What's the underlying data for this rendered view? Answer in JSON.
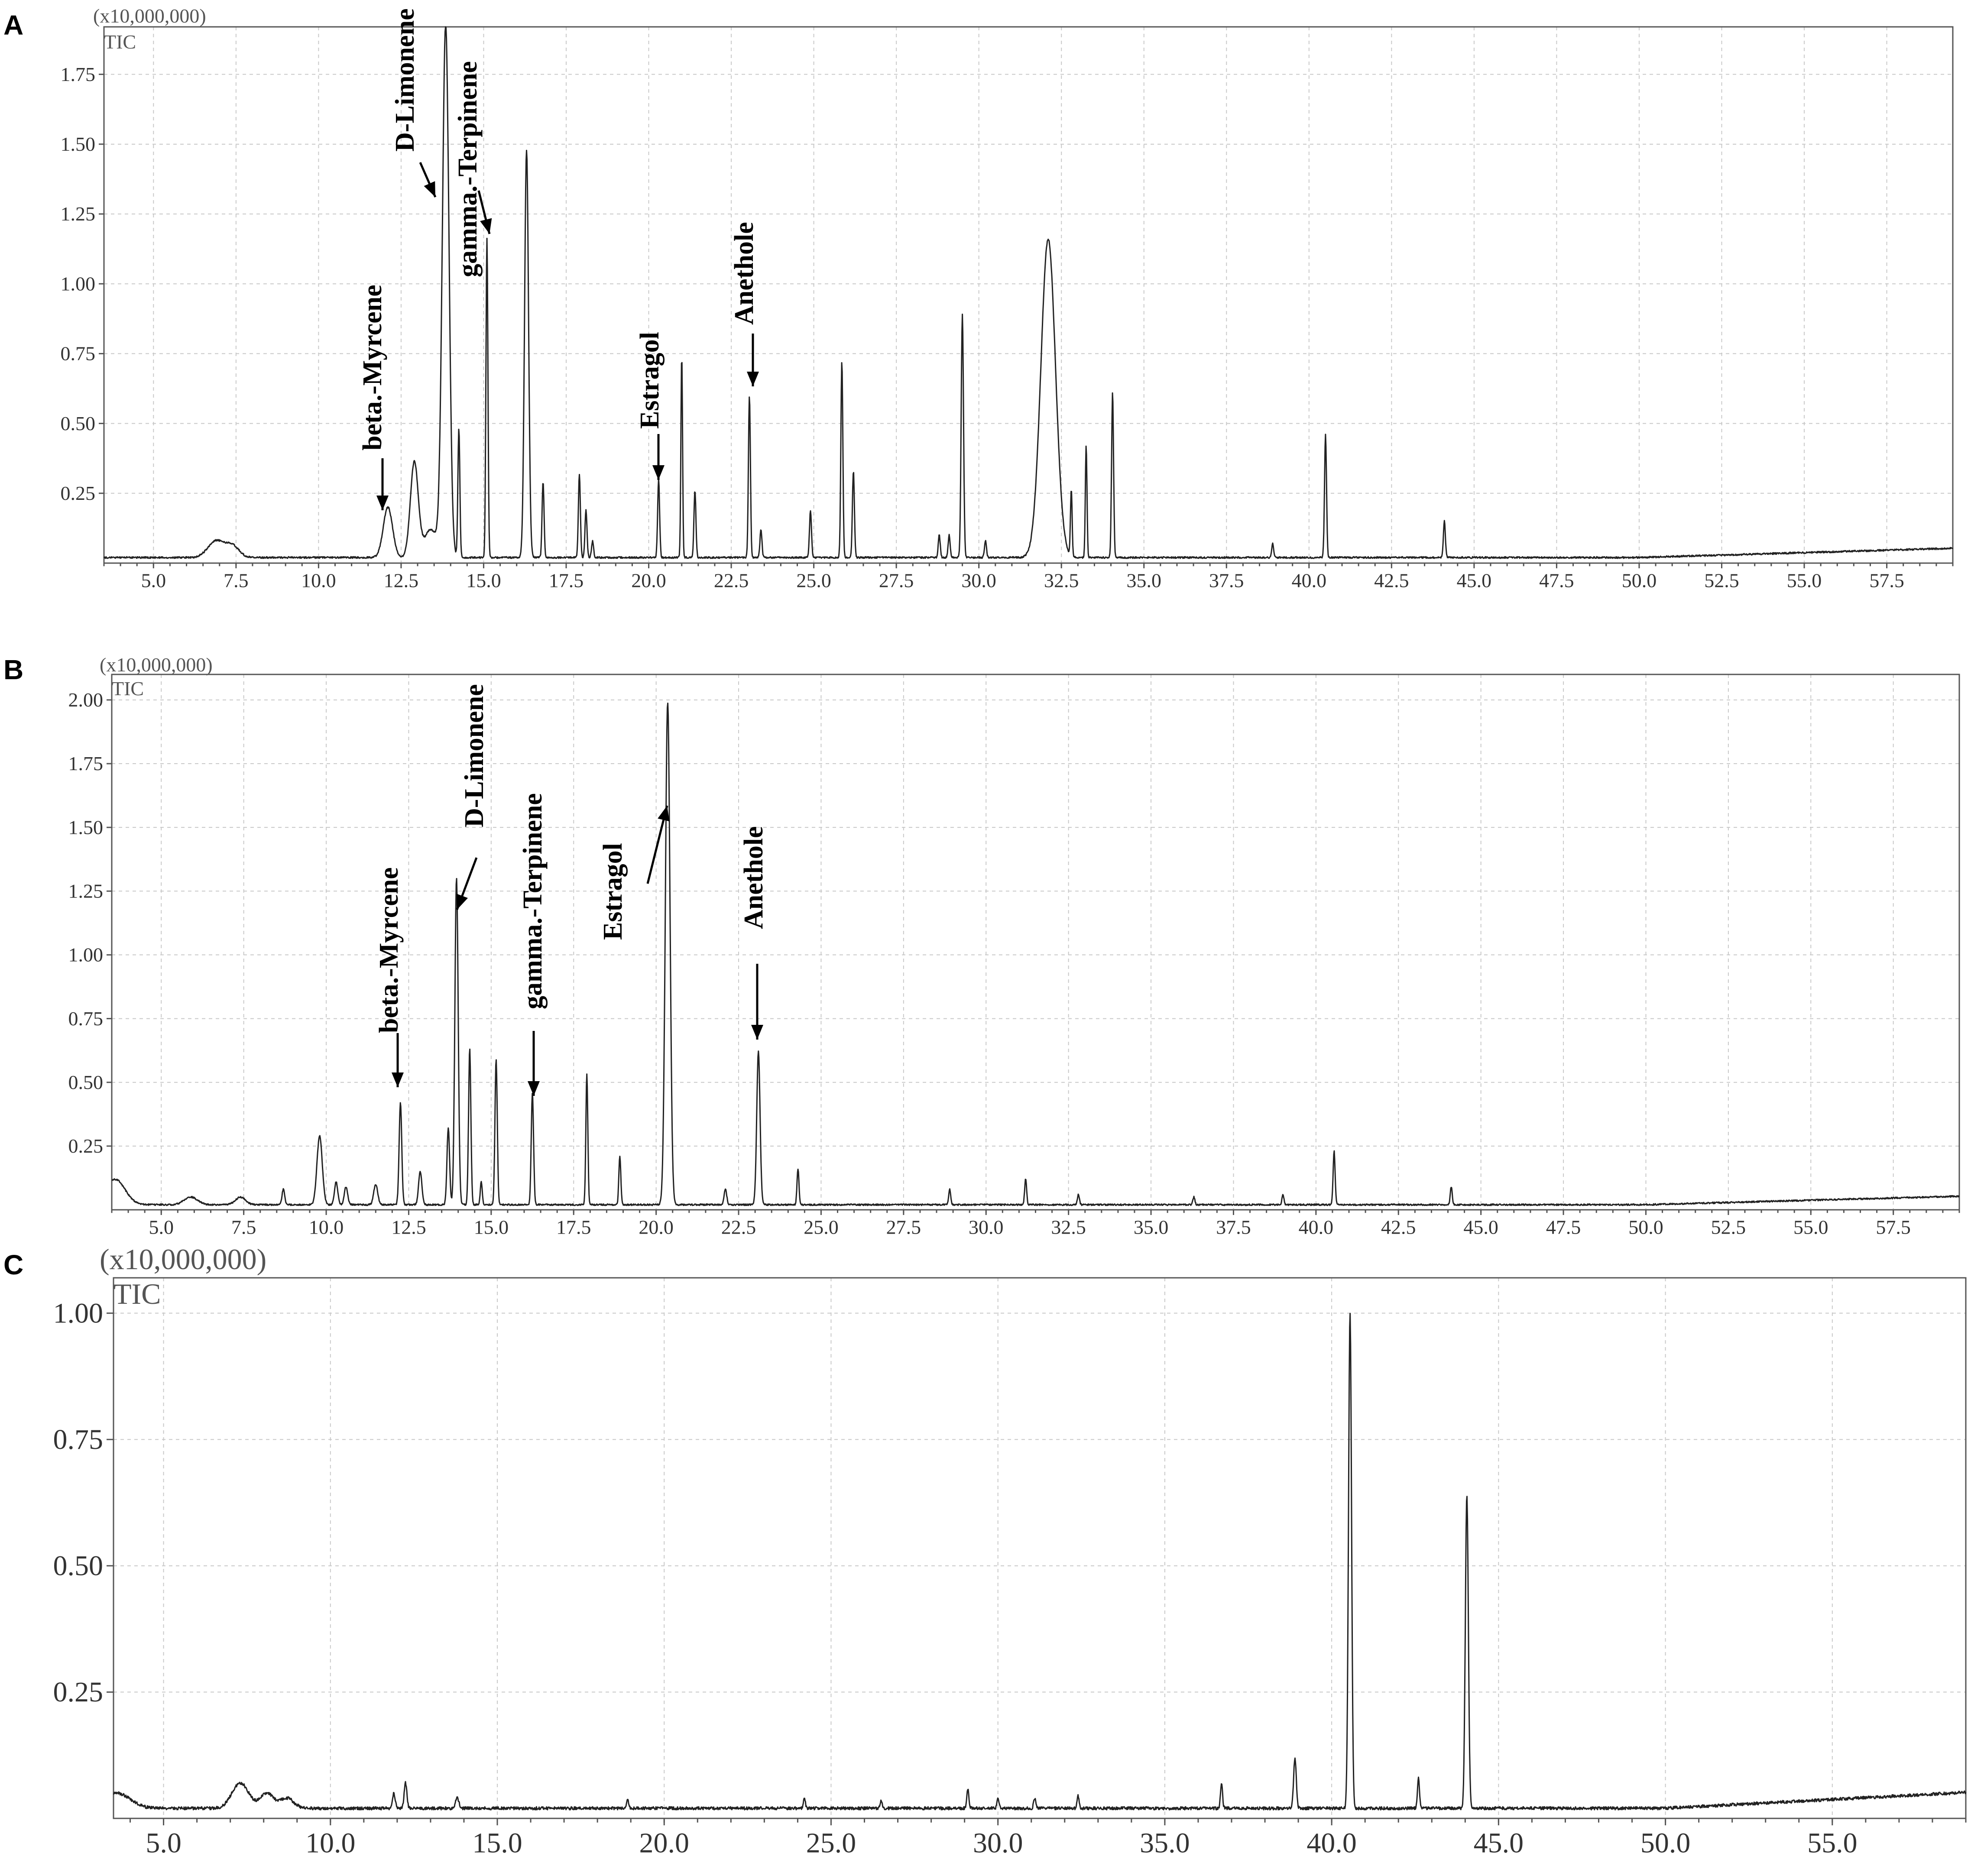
{
  "chart_data": [
    {
      "panel": "A",
      "type": "line",
      "scale_label": "(x10,000,000)",
      "trace_label": "TIC",
      "xlim": [
        3.5,
        59.5
      ],
      "ylim": [
        0,
        1.92
      ],
      "x_ticks": [
        5.0,
        7.5,
        10.0,
        12.5,
        15.0,
        17.5,
        20.0,
        22.5,
        25.0,
        27.5,
        30.0,
        32.5,
        35.0,
        37.5,
        40.0,
        42.5,
        45.0,
        47.5,
        50.0,
        52.5,
        55.0,
        57.5
      ],
      "x_tick_labels": [
        "5.0",
        "7.5",
        "10.0",
        "12.5",
        "15.0",
        "17.5",
        "20.0",
        "22.5",
        "25.0",
        "27.5",
        "30.0",
        "32.5",
        "35.0",
        "37.5",
        "40.0",
        "42.5",
        "45.0",
        "47.5",
        "50.0",
        "52.5",
        "55.0",
        "57.5"
      ],
      "y_ticks": [
        0.25,
        0.5,
        0.75,
        1.0,
        1.25,
        1.5,
        1.75
      ],
      "y_tick_labels": [
        "0.25",
        "0.50",
        "0.75",
        "1.00",
        "1.25",
        "1.50",
        "1.75"
      ],
      "baseline": 0.02,
      "peaks": [
        {
          "x": 6.9,
          "y": 0.06,
          "w": 0.25
        },
        {
          "x": 7.4,
          "y": 0.04,
          "w": 0.2
        },
        {
          "x": 12.1,
          "y": 0.18,
          "w": 0.14
        },
        {
          "x": 12.9,
          "y": 0.34,
          "w": 0.12
        },
        {
          "x": 13.4,
          "y": 0.1,
          "w": 0.2
        },
        {
          "x": 13.85,
          "y": 1.9,
          "w": 0.1
        },
        {
          "x": 14.25,
          "y": 0.46,
          "w": 0.03
        },
        {
          "x": 15.1,
          "y": 1.14,
          "w": 0.03
        },
        {
          "x": 16.3,
          "y": 1.46,
          "w": 0.06
        },
        {
          "x": 16.8,
          "y": 0.27,
          "w": 0.03
        },
        {
          "x": 17.9,
          "y": 0.3,
          "w": 0.03
        },
        {
          "x": 18.1,
          "y": 0.17,
          "w": 0.03
        },
        {
          "x": 18.3,
          "y": 0.06,
          "w": 0.03
        },
        {
          "x": 20.3,
          "y": 0.28,
          "w": 0.03
        },
        {
          "x": 21.0,
          "y": 0.72,
          "w": 0.025
        },
        {
          "x": 21.4,
          "y": 0.24,
          "w": 0.03
        },
        {
          "x": 23.05,
          "y": 0.58,
          "w": 0.03
        },
        {
          "x": 23.4,
          "y": 0.1,
          "w": 0.03
        },
        {
          "x": 24.9,
          "y": 0.17,
          "w": 0.03
        },
        {
          "x": 25.85,
          "y": 0.7,
          "w": 0.03
        },
        {
          "x": 26.2,
          "y": 0.31,
          "w": 0.03
        },
        {
          "x": 28.8,
          "y": 0.08,
          "w": 0.03
        },
        {
          "x": 29.1,
          "y": 0.08,
          "w": 0.03
        },
        {
          "x": 29.5,
          "y": 0.87,
          "w": 0.035
        },
        {
          "x": 30.2,
          "y": 0.06,
          "w": 0.03
        },
        {
          "x": 32.1,
          "y": 1.14,
          "w": 0.22
        },
        {
          "x": 32.8,
          "y": 0.24,
          "w": 0.025
        },
        {
          "x": 33.25,
          "y": 0.4,
          "w": 0.025
        },
        {
          "x": 34.05,
          "y": 0.59,
          "w": 0.03
        },
        {
          "x": 38.9,
          "y": 0.05,
          "w": 0.03
        },
        {
          "x": 40.5,
          "y": 0.44,
          "w": 0.03
        },
        {
          "x": 44.1,
          "y": 0.13,
          "w": 0.03
        }
      ],
      "annotations": [
        {
          "label": "beta.-Myrcene",
          "x": 12.1
        },
        {
          "label": "D-Limonene",
          "x": 13.85
        },
        {
          "label": "gamma.-Terpinene",
          "x": 15.1
        },
        {
          "label": "Estragol",
          "x": 20.3
        },
        {
          "label": "Anethole",
          "x": 23.05
        }
      ]
    },
    {
      "panel": "B",
      "type": "line",
      "scale_label": "(x10,000,000)",
      "trace_label": "TIC",
      "xlim": [
        3.5,
        59.5
      ],
      "ylim": [
        0,
        2.1
      ],
      "x_ticks": [
        5.0,
        7.5,
        10.0,
        12.5,
        15.0,
        17.5,
        20.0,
        22.5,
        25.0,
        27.5,
        30.0,
        32.5,
        35.0,
        37.5,
        40.0,
        42.5,
        45.0,
        47.5,
        50.0,
        52.5,
        55.0,
        57.5
      ],
      "x_tick_labels": [
        "5.0",
        "7.5",
        "10.0",
        "12.5",
        "15.0",
        "17.5",
        "20.0",
        "22.5",
        "25.0",
        "27.5",
        "30.0",
        "32.5",
        "35.0",
        "37.5",
        "40.0",
        "42.5",
        "45.0",
        "47.5",
        "50.0",
        "52.5",
        "55.0",
        "57.5"
      ],
      "y_ticks": [
        0.25,
        0.5,
        0.75,
        1.0,
        1.25,
        1.5,
        1.75,
        2.0
      ],
      "y_tick_labels": [
        "0.25",
        "0.50",
        "0.75",
        "1.00",
        "1.25",
        "1.50",
        "1.75",
        "2.00"
      ],
      "baseline": 0.02,
      "peaks": [
        {
          "x": 3.6,
          "y": 0.1,
          "w": 0.3
        },
        {
          "x": 5.9,
          "y": 0.03,
          "w": 0.2
        },
        {
          "x": 7.4,
          "y": 0.03,
          "w": 0.15
        },
        {
          "x": 8.7,
          "y": 0.06,
          "w": 0.04
        },
        {
          "x": 9.8,
          "y": 0.27,
          "w": 0.08
        },
        {
          "x": 10.3,
          "y": 0.09,
          "w": 0.05
        },
        {
          "x": 10.6,
          "y": 0.07,
          "w": 0.05
        },
        {
          "x": 11.5,
          "y": 0.08,
          "w": 0.06
        },
        {
          "x": 12.25,
          "y": 0.4,
          "w": 0.04
        },
        {
          "x": 12.85,
          "y": 0.13,
          "w": 0.05
        },
        {
          "x": 13.7,
          "y": 0.3,
          "w": 0.04
        },
        {
          "x": 13.95,
          "y": 1.28,
          "w": 0.05
        },
        {
          "x": 14.35,
          "y": 0.61,
          "w": 0.035
        },
        {
          "x": 14.7,
          "y": 0.09,
          "w": 0.03
        },
        {
          "x": 15.15,
          "y": 0.57,
          "w": 0.035
        },
        {
          "x": 16.25,
          "y": 0.44,
          "w": 0.035
        },
        {
          "x": 17.9,
          "y": 0.51,
          "w": 0.03
        },
        {
          "x": 18.9,
          "y": 0.19,
          "w": 0.03
        },
        {
          "x": 20.35,
          "y": 1.97,
          "w": 0.07
        },
        {
          "x": 22.1,
          "y": 0.06,
          "w": 0.04
        },
        {
          "x": 23.1,
          "y": 0.6,
          "w": 0.05
        },
        {
          "x": 24.3,
          "y": 0.14,
          "w": 0.03
        },
        {
          "x": 28.9,
          "y": 0.06,
          "w": 0.03
        },
        {
          "x": 31.2,
          "y": 0.1,
          "w": 0.03
        },
        {
          "x": 32.8,
          "y": 0.04,
          "w": 0.03
        },
        {
          "x": 36.3,
          "y": 0.03,
          "w": 0.03
        },
        {
          "x": 39.0,
          "y": 0.04,
          "w": 0.03
        },
        {
          "x": 40.55,
          "y": 0.21,
          "w": 0.03
        },
        {
          "x": 44.1,
          "y": 0.07,
          "w": 0.03
        }
      ],
      "annotations": [
        {
          "label": "beta.-Myrcene",
          "x": 12.25
        },
        {
          "label": "D-Limonene",
          "x": 13.95
        },
        {
          "label": "gamma.-Terpinene",
          "x": 16.25
        },
        {
          "label": "Estragol",
          "x": 20.35
        },
        {
          "label": "Anethole",
          "x": 23.1
        }
      ]
    },
    {
      "panel": "C",
      "type": "line",
      "scale_label": "(x10,000,000)",
      "trace_label": "TIC",
      "xlim": [
        3.5,
        59.0
      ],
      "ylim": [
        0,
        1.07
      ],
      "x_ticks": [
        5.0,
        10.0,
        15.0,
        20.0,
        25.0,
        30.0,
        35.0,
        40.0,
        45.0,
        50.0,
        55.0
      ],
      "x_tick_labels": [
        "5.0",
        "10.0",
        "15.0",
        "20.0",
        "25.0",
        "30.0",
        "35.0",
        "40.0",
        "45.0",
        "50.0",
        "55.0"
      ],
      "y_ticks": [
        0.25,
        0.5,
        0.75,
        1.0
      ],
      "y_tick_labels": [
        "0.25",
        "0.50",
        "0.75",
        "1.00"
      ],
      "baseline": 0.02,
      "peaks": [
        {
          "x": 3.6,
          "y": 0.03,
          "w": 0.4
        },
        {
          "x": 7.3,
          "y": 0.05,
          "w": 0.25
        },
        {
          "x": 8.1,
          "y": 0.03,
          "w": 0.2
        },
        {
          "x": 8.7,
          "y": 0.02,
          "w": 0.2
        },
        {
          "x": 11.9,
          "y": 0.03,
          "w": 0.04
        },
        {
          "x": 12.25,
          "y": 0.05,
          "w": 0.04
        },
        {
          "x": 13.8,
          "y": 0.02,
          "w": 0.05
        },
        {
          "x": 18.9,
          "y": 0.02,
          "w": 0.03
        },
        {
          "x": 24.2,
          "y": 0.02,
          "w": 0.03
        },
        {
          "x": 26.5,
          "y": 0.015,
          "w": 0.03
        },
        {
          "x": 29.1,
          "y": 0.04,
          "w": 0.03
        },
        {
          "x": 30.0,
          "y": 0.02,
          "w": 0.03
        },
        {
          "x": 31.1,
          "y": 0.02,
          "w": 0.03
        },
        {
          "x": 32.4,
          "y": 0.025,
          "w": 0.03
        },
        {
          "x": 36.7,
          "y": 0.05,
          "w": 0.03
        },
        {
          "x": 38.9,
          "y": 0.1,
          "w": 0.04
        },
        {
          "x": 40.55,
          "y": 0.98,
          "w": 0.045
        },
        {
          "x": 42.6,
          "y": 0.06,
          "w": 0.03
        },
        {
          "x": 44.05,
          "y": 0.62,
          "w": 0.045
        }
      ],
      "annotations": []
    }
  ]
}
